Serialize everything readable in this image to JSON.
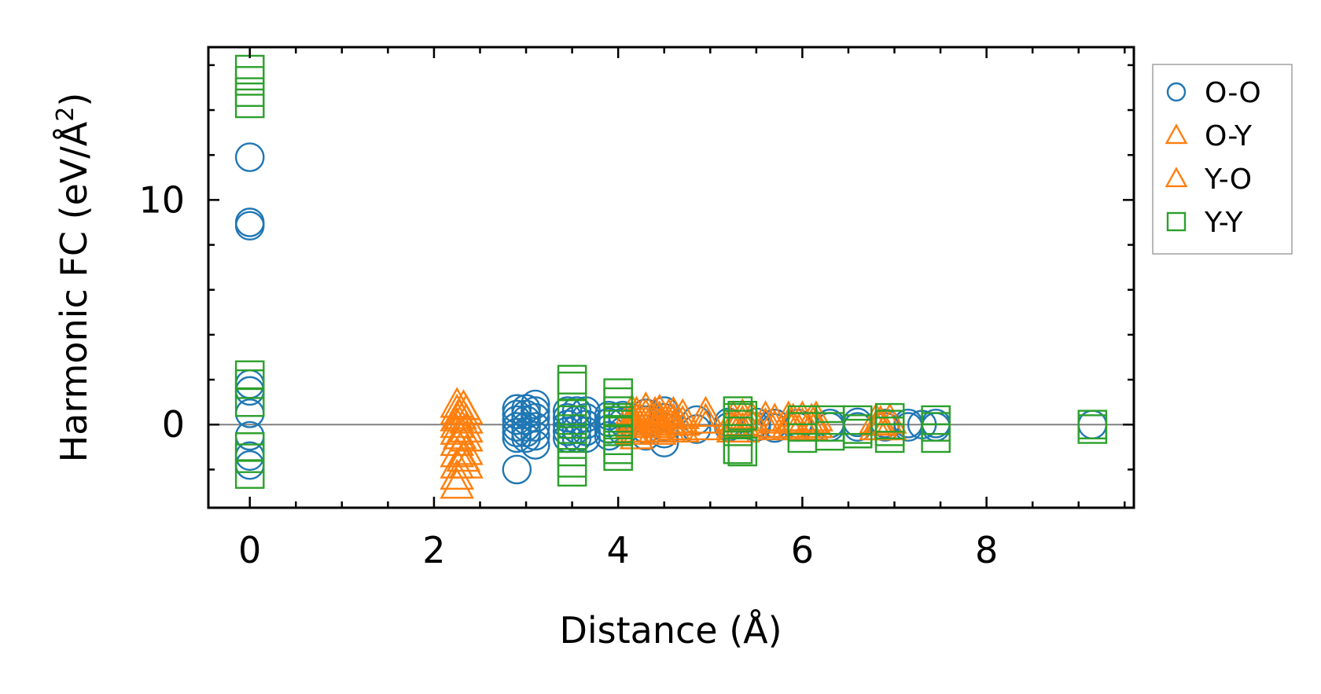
{
  "chart_data": {
    "type": "scatter",
    "xlabel": "Distance (Å)",
    "ylabel": "Harmonic FC (eV/Å²)",
    "ylabel_main": "Harmonic FC (eV/Å",
    "ylabel_sup": "2",
    "ylabel_end": ")",
    "xlim": [
      -0.45,
      9.6
    ],
    "ylim": [
      -3.7,
      16.8
    ],
    "x_ticks": [
      0,
      2,
      4,
      6,
      8
    ],
    "x_tick_labels": [
      "0",
      "2",
      "4",
      "6",
      "8"
    ],
    "y_ticks": [
      0,
      10
    ],
    "y_tick_labels": [
      "0",
      "10"
    ],
    "grid": false,
    "zero_line": true,
    "legend_position": "outside-right",
    "series": [
      {
        "name": "O-O",
        "marker": "circle",
        "color": "#1f77b4",
        "points": [
          [
            0,
            11.9
          ],
          [
            0,
            9.0
          ],
          [
            0,
            8.85
          ],
          [
            0,
            1.8
          ],
          [
            0,
            1.5
          ],
          [
            0,
            0.5
          ],
          [
            0,
            -0.5
          ],
          [
            0,
            -1.4
          ],
          [
            0,
            -1.8
          ],
          [
            2.9,
            0.7
          ],
          [
            2.9,
            0.45
          ],
          [
            2.9,
            0.2
          ],
          [
            2.9,
            -0.1
          ],
          [
            2.9,
            -0.35
          ],
          [
            2.9,
            -0.6
          ],
          [
            2.9,
            -2.0
          ],
          [
            3.0,
            0.7
          ],
          [
            3.0,
            0.45
          ],
          [
            3.0,
            0.2
          ],
          [
            3.0,
            -0.1
          ],
          [
            3.0,
            -0.35
          ],
          [
            3.0,
            -0.6
          ],
          [
            3.1,
            0.9
          ],
          [
            3.1,
            0.6
          ],
          [
            3.1,
            0.3
          ],
          [
            3.1,
            -0.1
          ],
          [
            3.1,
            -0.5
          ],
          [
            3.1,
            -0.9
          ],
          [
            3.45,
            0.6
          ],
          [
            3.45,
            0.3
          ],
          [
            3.45,
            0.0
          ],
          [
            3.45,
            -0.3
          ],
          [
            3.45,
            -0.6
          ],
          [
            3.55,
            0.6
          ],
          [
            3.55,
            0.2
          ],
          [
            3.55,
            -0.2
          ],
          [
            3.55,
            -0.6
          ],
          [
            3.65,
            0.6
          ],
          [
            3.65,
            0.3
          ],
          [
            3.65,
            0.0
          ],
          [
            3.65,
            -0.3
          ],
          [
            3.65,
            -0.6
          ],
          [
            3.9,
            0.4
          ],
          [
            3.9,
            0.1
          ],
          [
            3.9,
            -0.2
          ],
          [
            3.9,
            -0.5
          ],
          [
            4.05,
            0.4
          ],
          [
            4.05,
            0.1
          ],
          [
            4.05,
            -0.3
          ],
          [
            4.3,
            0.5
          ],
          [
            4.3,
            0.2
          ],
          [
            4.3,
            -0.2
          ],
          [
            4.3,
            -0.5
          ],
          [
            4.5,
            0.6
          ],
          [
            4.5,
            0.3
          ],
          [
            4.5,
            -0.1
          ],
          [
            4.5,
            -0.4
          ],
          [
            4.5,
            -0.8
          ],
          [
            4.85,
            0.2
          ],
          [
            4.85,
            -0.2
          ],
          [
            5.2,
            0.1
          ],
          [
            5.2,
            -0.1
          ],
          [
            5.5,
            0.1
          ],
          [
            5.5,
            -0.1
          ],
          [
            5.7,
            0.05
          ],
          [
            5.7,
            -0.15
          ],
          [
            5.95,
            0.05
          ],
          [
            5.95,
            -0.1
          ],
          [
            6.3,
            0.05
          ],
          [
            6.3,
            -0.1
          ],
          [
            6.6,
            0.1
          ],
          [
            6.6,
            -0.1
          ],
          [
            6.9,
            0.05
          ],
          [
            6.9,
            -0.1
          ],
          [
            7.15,
            0.05
          ],
          [
            7.15,
            -0.1
          ],
          [
            7.3,
            0.0
          ],
          [
            7.45,
            0.05
          ],
          [
            7.45,
            -0.1
          ],
          [
            9.15,
            0.0
          ]
        ]
      },
      {
        "name": "O-Y",
        "marker": "triangle",
        "color": "#ff7f0e",
        "points": [
          [
            2.25,
            0.9
          ],
          [
            2.25,
            0.6
          ],
          [
            2.25,
            0.3
          ],
          [
            2.25,
            0.0
          ],
          [
            2.25,
            -0.3
          ],
          [
            2.25,
            -0.8
          ],
          [
            2.25,
            -1.3
          ],
          [
            2.25,
            -1.8
          ],
          [
            2.25,
            -2.3
          ],
          [
            2.25,
            -2.7
          ],
          [
            2.35,
            0.6
          ],
          [
            2.35,
            0.2
          ],
          [
            2.35,
            -0.2
          ],
          [
            2.35,
            -0.6
          ],
          [
            2.35,
            -1.2
          ],
          [
            2.35,
            -1.8
          ],
          [
            4.15,
            0.6
          ],
          [
            4.15,
            0.3
          ],
          [
            4.15,
            0.0
          ],
          [
            4.15,
            -0.3
          ],
          [
            4.3,
            0.7
          ],
          [
            4.3,
            0.4
          ],
          [
            4.3,
            0.1
          ],
          [
            4.3,
            -0.2
          ],
          [
            4.45,
            0.6
          ],
          [
            4.45,
            0.3
          ],
          [
            4.45,
            0.0
          ],
          [
            4.45,
            -0.3
          ],
          [
            4.6,
            0.5
          ],
          [
            4.6,
            0.2
          ],
          [
            4.6,
            -0.1
          ],
          [
            4.95,
            0.5
          ],
          [
            4.95,
            0.2
          ],
          [
            4.95,
            -0.1
          ],
          [
            5.35,
            0.4
          ],
          [
            5.35,
            0.1
          ],
          [
            5.35,
            -0.2
          ],
          [
            5.6,
            0.3
          ],
          [
            5.6,
            0.0
          ],
          [
            5.85,
            0.3
          ],
          [
            5.85,
            0.0
          ],
          [
            6.0,
            0.3
          ],
          [
            6.0,
            0.0
          ],
          [
            6.15,
            0.3
          ],
          [
            6.15,
            0.0
          ],
          [
            6.8,
            0.2
          ],
          [
            6.8,
            -0.1
          ],
          [
            6.95,
            0.2
          ],
          [
            6.95,
            -0.1
          ]
        ]
      },
      {
        "name": "Y-O",
        "marker": "triangle",
        "color": "#ff7f0e",
        "points": [
          [
            2.28,
            0.4
          ],
          [
            2.28,
            -0.5
          ],
          [
            2.32,
            -1.5
          ],
          [
            2.32,
            0.8
          ],
          [
            4.2,
            0.5
          ],
          [
            4.2,
            0.2
          ],
          [
            4.2,
            -0.2
          ],
          [
            4.2,
            -0.5
          ],
          [
            4.4,
            0.5
          ],
          [
            4.4,
            0.2
          ],
          [
            4.4,
            -0.2
          ],
          [
            4.55,
            0.4
          ],
          [
            4.55,
            0.1
          ],
          [
            4.55,
            -0.2
          ],
          [
            4.7,
            0.4
          ],
          [
            4.7,
            0.1
          ],
          [
            4.7,
            -0.2
          ],
          [
            5.25,
            0.3
          ],
          [
            5.25,
            0.0
          ],
          [
            5.25,
            -0.2
          ],
          [
            5.45,
            0.3
          ],
          [
            5.45,
            0.0
          ],
          [
            5.7,
            0.2
          ],
          [
            5.7,
            -0.1
          ],
          [
            5.9,
            0.2
          ],
          [
            5.9,
            -0.1
          ],
          [
            6.1,
            0.2
          ],
          [
            6.1,
            -0.1
          ],
          [
            6.85,
            0.1
          ],
          [
            6.85,
            -0.1
          ]
        ]
      },
      {
        "name": "Y-Y",
        "marker": "square",
        "color": "#2ca02c",
        "points": [
          [
            0,
            15.8
          ],
          [
            0,
            15.3
          ],
          [
            0,
            14.8
          ],
          [
            0,
            14.3
          ],
          [
            0,
            2.2
          ],
          [
            0,
            1.8
          ],
          [
            0,
            1.0
          ],
          [
            0,
            -1.0
          ],
          [
            0,
            -1.5
          ],
          [
            0,
            -2.2
          ],
          [
            3.5,
            2.0
          ],
          [
            3.5,
            1.7
          ],
          [
            3.5,
            0.5
          ],
          [
            3.5,
            0.2
          ],
          [
            3.5,
            -0.2
          ],
          [
            3.5,
            -0.6
          ],
          [
            3.5,
            -1.2
          ],
          [
            3.5,
            -1.7
          ],
          [
            3.5,
            -2.1
          ],
          [
            4.0,
            1.4
          ],
          [
            4.0,
            1.0
          ],
          [
            4.0,
            0.6
          ],
          [
            4.0,
            0.3
          ],
          [
            4.0,
            0.0
          ],
          [
            4.0,
            -0.3
          ],
          [
            4.0,
            -0.7
          ],
          [
            4.0,
            -1.1
          ],
          [
            4.0,
            -1.4
          ],
          [
            5.3,
            0.6
          ],
          [
            5.3,
            0.3
          ],
          [
            5.3,
            0.0
          ],
          [
            5.3,
            -0.3
          ],
          [
            5.3,
            -1.1
          ],
          [
            5.35,
            0.4
          ],
          [
            5.35,
            -1.2
          ],
          [
            6.0,
            0.2
          ],
          [
            6.0,
            -0.1
          ],
          [
            6.0,
            -0.6
          ],
          [
            6.3,
            0.2
          ],
          [
            6.3,
            -0.1
          ],
          [
            6.3,
            -0.5
          ],
          [
            6.6,
            0.2
          ],
          [
            6.6,
            -0.2
          ],
          [
            6.6,
            -0.4
          ],
          [
            6.95,
            0.3
          ],
          [
            6.95,
            0.0
          ],
          [
            6.95,
            -0.3
          ],
          [
            6.95,
            -0.6
          ],
          [
            7.45,
            0.2
          ],
          [
            7.45,
            -0.1
          ],
          [
            7.45,
            -0.6
          ],
          [
            9.15,
            0.0
          ],
          [
            9.15,
            -0.2
          ]
        ]
      }
    ]
  }
}
